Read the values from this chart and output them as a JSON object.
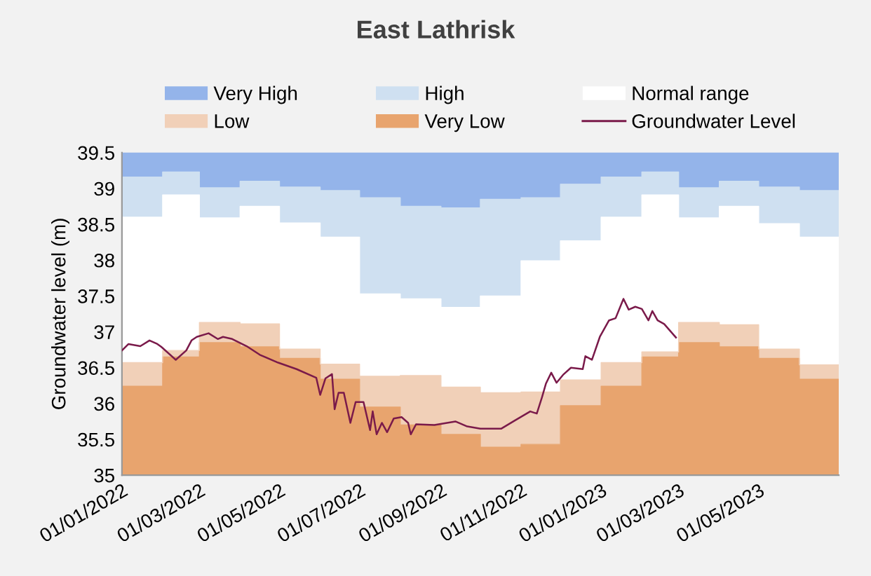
{
  "chart_data": {
    "type": "area",
    "title": "East Lathrisk",
    "ylabel": "Groundwater level (m)",
    "x": [
      "2022-01-01",
      "2022-02-01",
      "2022-02-01",
      "2022-03-01",
      "2022-03-01",
      "2022-04-01",
      "2022-04-01",
      "2022-05-01",
      "2022-05-01",
      "2022-06-01",
      "2022-06-01",
      "2022-07-01",
      "2022-07-01",
      "2022-08-01",
      "2022-08-01",
      "2022-09-01",
      "2022-09-01",
      "2022-10-01",
      "2022-10-01",
      "2022-11-01",
      "2022-11-01",
      "2022-12-01",
      "2022-12-01",
      "2023-01-01",
      "2023-01-01",
      "2023-02-01",
      "2023-02-01",
      "2023-03-01",
      "2023-03-01",
      "2023-04-01",
      "2023-04-01",
      "2023-05-01",
      "2023-05-01",
      "2023-06-01",
      "2023-06-01",
      "2023-07-01"
    ],
    "series": [
      {
        "name": "Very Low",
        "color": "#e8a46e",
        "values": [
          36.24,
          36.24,
          36.65,
          36.65,
          36.85,
          36.85,
          36.79,
          36.79,
          36.63,
          36.63,
          36.34,
          36.34,
          35.95,
          35.95,
          35.7,
          35.7,
          35.57,
          35.57,
          35.39,
          35.39,
          35.43,
          35.43,
          35.97,
          35.97,
          36.24,
          36.24,
          36.65,
          36.65,
          36.85,
          36.85,
          36.79,
          36.79,
          36.63,
          36.63,
          36.34,
          36.34
        ]
      },
      {
        "name": "Low",
        "color": "#f1d0b8",
        "values": [
          36.57,
          36.57,
          36.74,
          36.74,
          37.13,
          37.13,
          37.11,
          37.11,
          36.76,
          36.76,
          36.55,
          36.55,
          36.38,
          36.38,
          36.39,
          36.39,
          36.23,
          36.23,
          36.15,
          36.15,
          36.16,
          36.16,
          36.33,
          36.33,
          36.57,
          36.57,
          36.72,
          36.72,
          37.13,
          37.13,
          37.1,
          37.1,
          36.76,
          36.76,
          36.54,
          36.54
        ]
      },
      {
        "name": "Normal range",
        "color": "#ffffff",
        "values": [
          38.6,
          38.6,
          38.91,
          38.91,
          38.59,
          38.59,
          38.75,
          38.75,
          38.52,
          38.52,
          38.32,
          38.32,
          37.53,
          37.53,
          37.46,
          37.46,
          37.34,
          37.34,
          37.5,
          37.5,
          37.99,
          37.99,
          38.27,
          38.27,
          38.6,
          38.6,
          38.91,
          38.91,
          38.59,
          38.59,
          38.75,
          38.75,
          38.51,
          38.51,
          38.32,
          38.32
        ]
      },
      {
        "name": "High",
        "color": "#cfe0f1",
        "values": [
          39.16,
          39.16,
          39.23,
          39.23,
          39.01,
          39.01,
          39.1,
          39.1,
          39.02,
          39.02,
          38.97,
          38.97,
          38.87,
          38.87,
          38.75,
          38.75,
          38.73,
          38.73,
          38.85,
          38.85,
          38.87,
          38.87,
          39.06,
          39.06,
          39.16,
          39.16,
          39.23,
          39.23,
          39.01,
          39.01,
          39.1,
          39.1,
          39.02,
          39.02,
          38.97,
          38.97
        ]
      },
      {
        "name": "Very High",
        "color": "#94b4ea",
        "values": [
          39.5,
          39.5,
          39.5,
          39.5,
          39.5,
          39.5,
          39.5,
          39.5,
          39.5,
          39.5,
          39.5,
          39.5,
          39.5,
          39.5,
          39.5,
          39.5,
          39.5,
          39.5,
          39.5,
          39.5,
          39.5,
          39.5,
          39.5,
          39.5,
          39.5,
          39.5,
          39.5,
          39.5,
          39.5,
          39.5,
          39.5,
          39.5,
          39.5,
          39.5,
          39.5,
          39.5
        ]
      },
      {
        "name": "Groundwater Level",
        "type": "line",
        "color": "#7a1a4a",
        "x": [
          "2022-01-01",
          "2022-01-06",
          "2022-01-15",
          "2022-01-22",
          "2022-01-28",
          "2022-01-31",
          "2022-02-11",
          "2022-02-19",
          "2022-02-23",
          "2022-02-27",
          "2022-03-08",
          "2022-03-15",
          "2022-03-19",
          "2022-03-26",
          "2022-04-06",
          "2022-04-16",
          "2022-04-30",
          "2022-05-14",
          "2022-05-29",
          "2022-06-01",
          "2022-06-05",
          "2022-06-10",
          "2022-06-12",
          "2022-06-15",
          "2022-06-19",
          "2022-06-24",
          "2022-06-28",
          "2022-07-04",
          "2022-07-09",
          "2022-07-11",
          "2022-07-14",
          "2022-07-18",
          "2022-07-22",
          "2022-07-27",
          "2022-08-02",
          "2022-08-07",
          "2022-08-09",
          "2022-08-13",
          "2022-08-27",
          "2022-09-12",
          "2022-09-21",
          "2022-10-01",
          "2022-10-17",
          "2022-10-27",
          "2022-11-08",
          "2022-11-13",
          "2022-11-17",
          "2022-11-20",
          "2022-11-24",
          "2022-11-28",
          "2022-12-03",
          "2022-12-09",
          "2022-12-18",
          "2022-12-20",
          "2022-12-25",
          "2022-12-31",
          "2023-01-07",
          "2023-01-12",
          "2023-01-18",
          "2023-01-22",
          "2023-01-27",
          "2023-02-01",
          "2023-02-06",
          "2023-02-09",
          "2023-02-13",
          "2023-02-18",
          "2023-02-27"
        ],
        "values": [
          36.74,
          36.83,
          36.8,
          36.88,
          36.83,
          36.79,
          36.61,
          36.74,
          36.88,
          36.93,
          36.98,
          36.9,
          36.93,
          36.9,
          36.8,
          36.68,
          36.57,
          36.48,
          36.36,
          36.12,
          36.35,
          36.41,
          35.92,
          36.15,
          36.15,
          35.73,
          36.02,
          36.02,
          35.63,
          35.89,
          35.57,
          35.73,
          35.6,
          35.79,
          35.81,
          35.73,
          35.57,
          35.71,
          35.7,
          35.75,
          35.68,
          35.65,
          35.65,
          35.76,
          35.89,
          35.86,
          36.09,
          36.28,
          36.43,
          36.29,
          36.4,
          36.5,
          36.48,
          36.66,
          36.61,
          36.93,
          37.16,
          37.19,
          37.46,
          37.31,
          37.35,
          37.32,
          37.16,
          37.29,
          37.16,
          37.11,
          36.92
        ]
      }
    ],
    "xlim": [
      "2022-01-01",
      "2023-07-01"
    ],
    "xticks": [
      {
        "value": "2022-01-01",
        "label": "01/01/2022"
      },
      {
        "value": "2022-03-01",
        "label": "01/03/2022"
      },
      {
        "value": "2022-05-01",
        "label": "01/05/2022"
      },
      {
        "value": "2022-07-01",
        "label": "01/07/2022"
      },
      {
        "value": "2022-09-01",
        "label": "01/09/2022"
      },
      {
        "value": "2022-11-01",
        "label": "01/11/2022"
      },
      {
        "value": "2023-01-01",
        "label": "01/01/2023"
      },
      {
        "value": "2023-03-01",
        "label": "01/03/2023"
      },
      {
        "value": "2023-05-01",
        "label": "01/05/2023"
      }
    ],
    "ylim": [
      35,
      39.5
    ],
    "yticks": [
      35,
      35.5,
      36,
      36.5,
      37,
      37.5,
      38,
      38.5,
      39,
      39.5
    ],
    "grid": false,
    "legend": "top"
  }
}
